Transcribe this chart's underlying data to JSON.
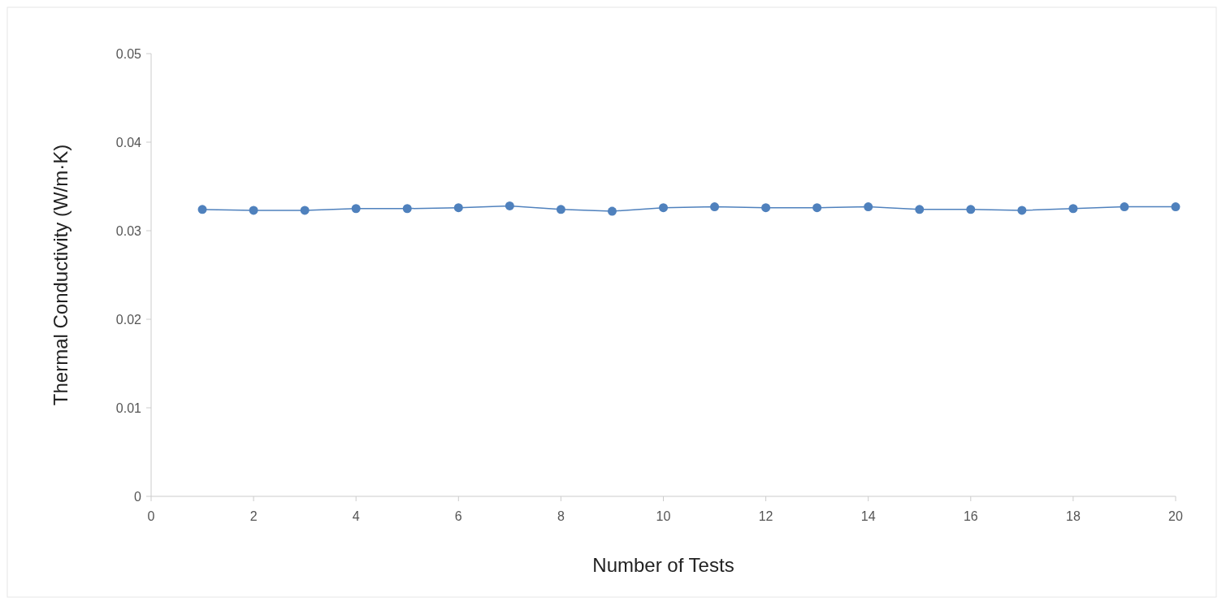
{
  "chart_data": {
    "type": "line",
    "xlabel": "Number of Tests",
    "ylabel": "Thermal Conductivity (W/m·K)",
    "x": [
      1,
      2,
      3,
      4,
      5,
      6,
      7,
      8,
      9,
      10,
      11,
      12,
      13,
      14,
      15,
      16,
      17,
      18,
      19,
      20
    ],
    "series": [
      {
        "color": "#4f81bd",
        "values": [
          0.0324,
          0.0323,
          0.0323,
          0.0325,
          0.0325,
          0.0326,
          0.0328,
          0.0324,
          0.0322,
          0.0326,
          0.0327,
          0.0326,
          0.0326,
          0.0327,
          0.0324,
          0.0324,
          0.0323,
          0.0325,
          0.0327,
          0.0327
        ]
      }
    ],
    "xlim": [
      0,
      20
    ],
    "xticks": [
      0,
      2,
      4,
      6,
      8,
      10,
      12,
      14,
      16,
      18,
      20
    ],
    "ylim": [
      0,
      0.05
    ],
    "yticks": [
      0,
      0.01,
      0.02,
      0.03,
      0.04,
      0.05
    ],
    "marker": "circle",
    "line_style": "solid",
    "grid": false
  }
}
